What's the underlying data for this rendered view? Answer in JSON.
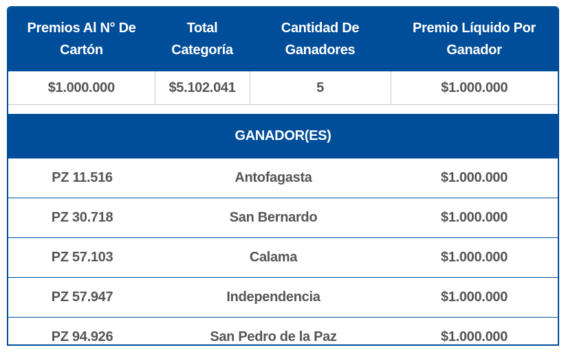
{
  "summary": {
    "headers": [
      "Premios Al N° De Cartón",
      "Total Categoría",
      "Cantidad De Ganadores",
      "Premio Líquido Por Ganador"
    ],
    "values": [
      "$1.000.000",
      "$5.102.041",
      "5",
      "$1.000.000"
    ]
  },
  "winners": {
    "title": "GANADOR(ES)",
    "rows": [
      [
        "PZ 11.516",
        "Antofagasta",
        "$1.000.000"
      ],
      [
        "PZ 30.718",
        "San Bernardo",
        "$1.000.000"
      ],
      [
        "PZ 57.103",
        "Calama",
        "$1.000.000"
      ],
      [
        "PZ 57.947",
        "Independencia",
        "$1.000.000"
      ],
      [
        "PZ 94.926",
        "San Pedro de la Paz",
        "$1.000.000"
      ]
    ]
  },
  "colors": {
    "header_bg": "#004d99",
    "text": "#555555"
  }
}
